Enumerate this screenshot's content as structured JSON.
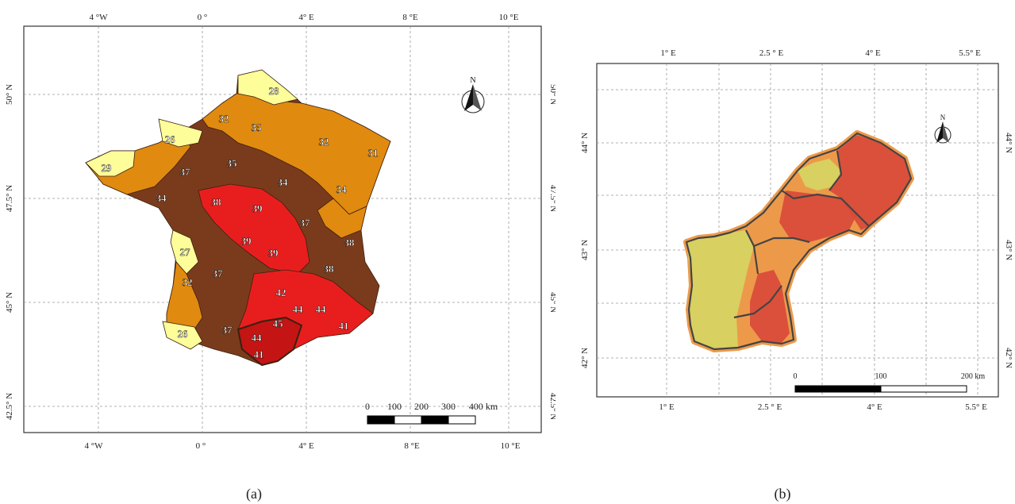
{
  "panel_a": {
    "caption": "(a)",
    "lon_labels": [
      "4 °W",
      "0 °",
      "4° E",
      "8 °E",
      "10 °E"
    ],
    "lat_labels": [
      "50° N",
      "47.5° N",
      "45° N",
      "42.5° N"
    ],
    "north_label": "N",
    "scale_labels": [
      "0",
      "100",
      "200",
      "300",
      "400 km"
    ],
    "region_values": [
      "28",
      "32",
      "35",
      "26",
      "29",
      "32",
      "31",
      "37",
      "35",
      "34",
      "34",
      "34",
      "38",
      "39",
      "37",
      "39",
      "38",
      "27",
      "39",
      "37",
      "32",
      "38",
      "42",
      "44",
      "44",
      "26",
      "37",
      "45",
      "41",
      "44",
      "41"
    ]
  },
  "panel_b": {
    "caption": "(b)",
    "lon_labels": [
      "1° E",
      "2.5 ° E",
      "4° E",
      "5.5° E"
    ],
    "lat_labels": [
      "44° N",
      "43° N",
      "42° N"
    ],
    "north_label": "N",
    "scale_labels": [
      "0",
      "100",
      "200 km"
    ]
  },
  "colors": {
    "pale_yellow": "#fdfd9a",
    "yellow": "#f4e04a",
    "orange": "#e08a10",
    "dark_orange": "#c9660e",
    "brown": "#7a3b1c",
    "red": "#e81e1e",
    "deep_red": "#c41414",
    "olive_yellow": "#d8d060",
    "salmon": "#ec9a4a",
    "dotted_red": "#d9483a"
  }
}
